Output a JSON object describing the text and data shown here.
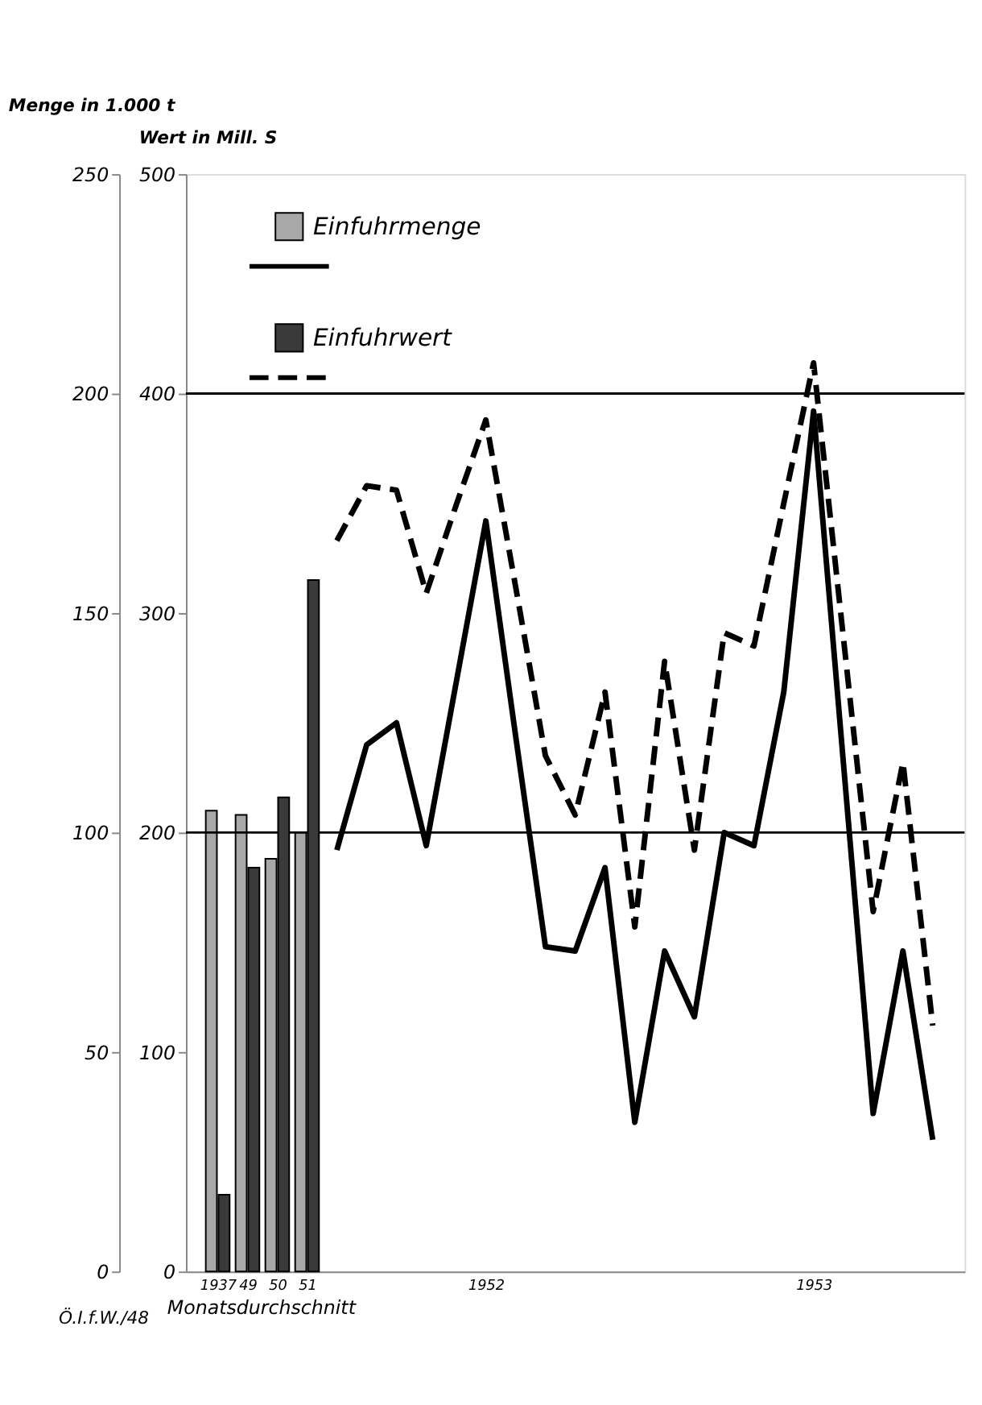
{
  "chart_data": {
    "type": "bar",
    "ylabel": "Menge in 1.000 t",
    "y2label": "Wert in Mill. S",
    "xlabel": "Monatsdurchschnitt",
    "annotations": [
      "Ö.I.f.W./48"
    ],
    "categories": [
      "1937",
      "49",
      "50",
      "51",
      null,
      null,
      null,
      null,
      null,
      "1952",
      null,
      null,
      null,
      null,
      null,
      null,
      null,
      null,
      null,
      null,
      "1953",
      null,
      null,
      null,
      null
    ],
    "ylim": [
      0,
      250
    ],
    "yticks": [
      0,
      50,
      100,
      150,
      200,
      250
    ],
    "y2lim": [
      0,
      500
    ],
    "y2ticks": [
      0,
      100,
      200,
      300,
      400,
      500
    ],
    "grid": false,
    "legend": "top left",
    "marker": "none",
    "ref_lines": [
      {
        "axis": "y",
        "value": 100
      },
      {
        "axis": "y",
        "value": 200
      }
    ],
    "series": [
      {
        "name": "Einfuhrmenge",
        "color": "#a8a8a8",
        "values": [
          105,
          104,
          94,
          100,
          null,
          null,
          null,
          null,
          null,
          null,
          null,
          null,
          null,
          null,
          null,
          null,
          null,
          null,
          null,
          null,
          null,
          null,
          null,
          null,
          null
        ]
      },
      {
        "name": "Einfuhrwert",
        "axis": "y2",
        "color": "#3a3a3a",
        "values": [
          35,
          184,
          216,
          315,
          null,
          null,
          null,
          null,
          null,
          null,
          null,
          null,
          null,
          null,
          null,
          null,
          null,
          null,
          null,
          null,
          null,
          null,
          null,
          null,
          null
        ]
      },
      {
        "type": "line",
        "color": "#000000",
        "line_style": "solid",
        "values": [
          null,
          null,
          null,
          null,
          96,
          120,
          125,
          97,
          134,
          171,
          122,
          74,
          73,
          92,
          34,
          73,
          58,
          100,
          97,
          132,
          196,
          116,
          36,
          73,
          30
        ]
      },
      {
        "type": "line",
        "axis": "y2",
        "color": "#000000",
        "line_style": "dashed",
        "values": [
          null,
          null,
          null,
          null,
          333,
          358,
          356,
          309,
          349,
          388,
          312,
          235,
          208,
          264,
          157,
          278,
          192,
          291,
          285,
          350,
          414,
          289,
          164,
          232,
          112
        ]
      }
    ]
  }
}
